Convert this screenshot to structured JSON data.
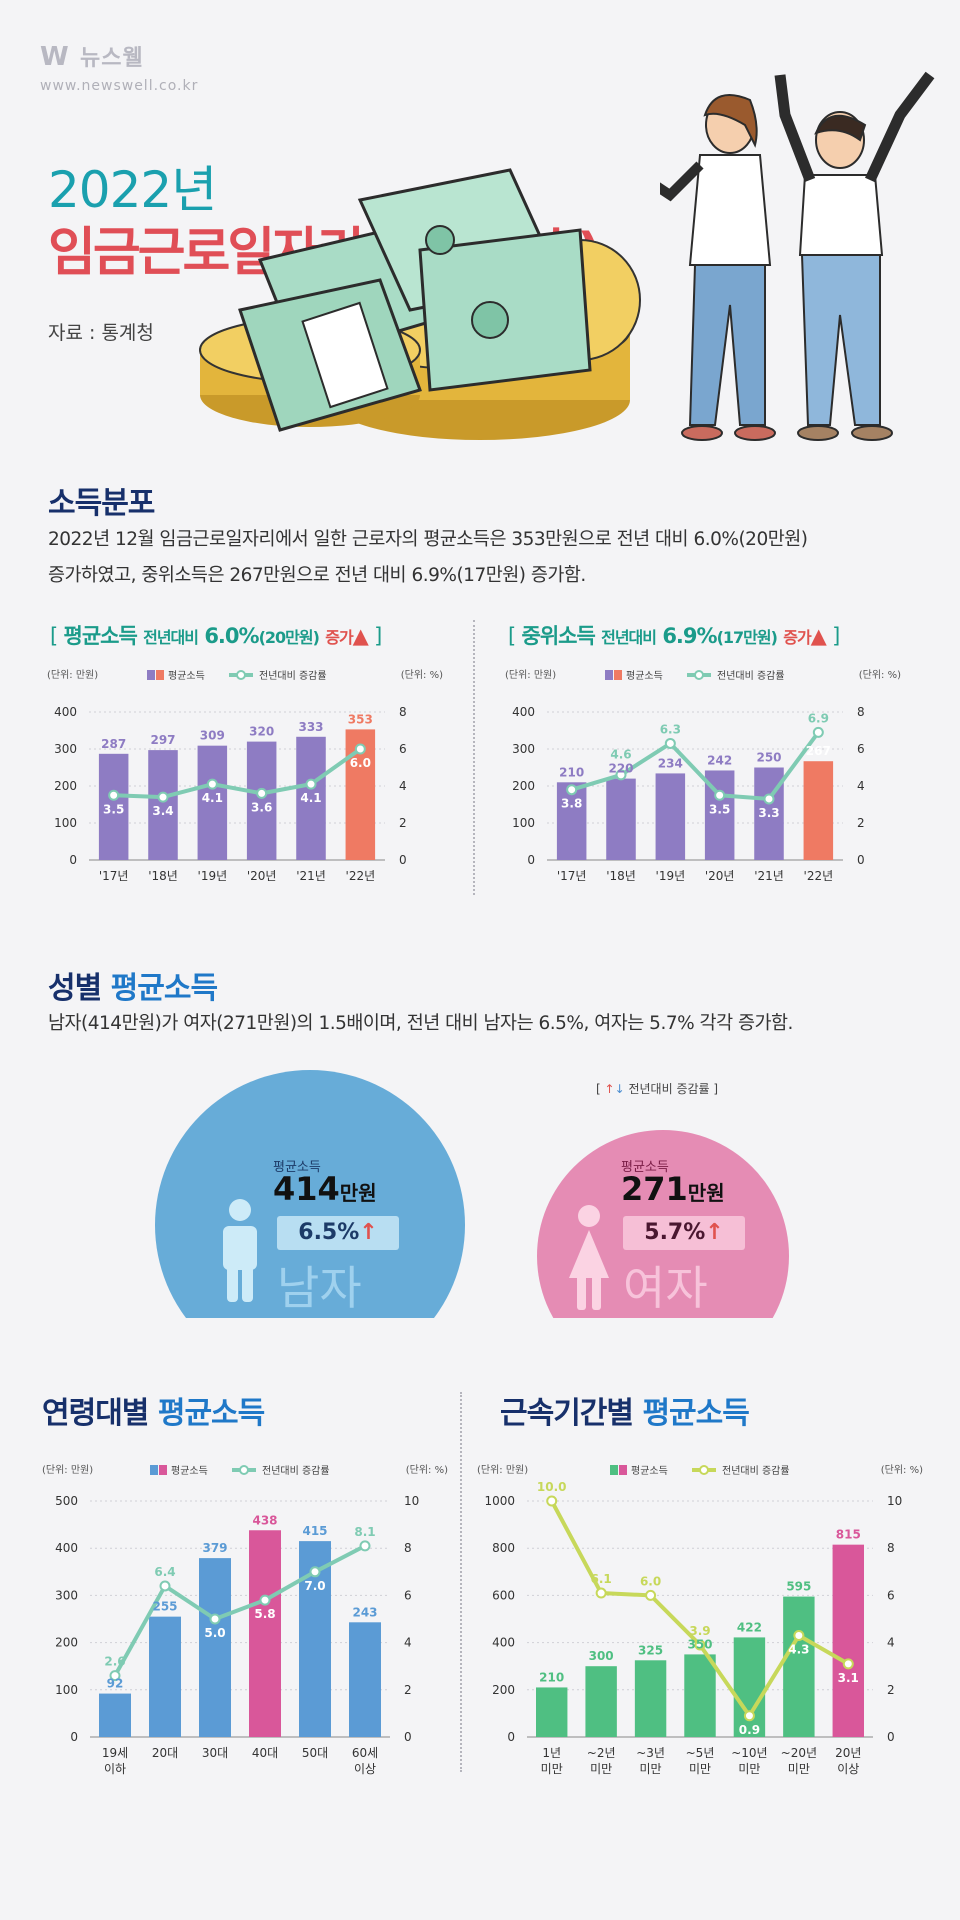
{
  "brand": {
    "name": "뉴스웰",
    "url": "www.newswell.co.kr"
  },
  "title": {
    "year": "2022년",
    "main": "임금근로일자리 소득(보수)",
    "source": "자료 : 통계청"
  },
  "colors": {
    "teal": "#1aa0ae",
    "red": "#e04e56",
    "navy": "#17306b",
    "purple": "#8e7cc3",
    "orange": "#ef7a63",
    "mint": "#7fcbb3",
    "blue": "#5b9bd5",
    "pink": "#d9579a",
    "green": "#4fbf82",
    "lime": "#c7d85a",
    "male_bg": "#67acd8",
    "female_bg": "#e58cb4"
  },
  "section1": {
    "title": "소득분포",
    "desc_line1": "2022년 12월 임금근로일자리에서 일한 근로자의 평균소득은 353만원으로 전년 대비 6.0%(20만원)",
    "desc_line2": "증가하였고, 중위소득은 267만원으로 전년 대비 6.9%(17만원) 증가함."
  },
  "chart_avg": {
    "head_open": "[",
    "head_title": "평균소득",
    "head_sub": "전년대비",
    "head_pct": "6.0%",
    "head_amt": "(20만원)",
    "head_inc": "증가",
    "head_close": "]"
  },
  "chart_med": {
    "head_open": "[",
    "head_title": "중위소득",
    "head_sub": "전년대비",
    "head_pct": "6.9%",
    "head_amt": "(17만원)",
    "head_inc": "증가",
    "head_close": "]"
  },
  "section2": {
    "title_a": "성별",
    "title_b": "평균소득",
    "desc": "남자(414만원)가 여자(271만원)의 1.5배이며, 전년 대비 남자는 6.5%, 여자는 5.7% 각각 증가함.",
    "legend": "전년대비 증감률",
    "legend_open": "[",
    "legend_close": "]",
    "male": {
      "label": "평균소득",
      "value": "414",
      "unit": "만원",
      "rate": "6.5%",
      "name": "남자"
    },
    "female": {
      "label": "평균소득",
      "value": "271",
      "unit": "만원",
      "rate": "5.7%",
      "name": "여자"
    }
  },
  "section3": {
    "title_a": "연령대별",
    "title_b": "평균소득"
  },
  "section4": {
    "title_a": "근속기간별",
    "title_b": "평균소득"
  },
  "chart_data": [
    {
      "type": "bar",
      "title": "평균소득",
      "categories": [
        "'17년",
        "'18년",
        "'19년",
        "'20년",
        "'21년",
        "'22년"
      ],
      "series": [
        {
          "name": "평균소득",
          "type": "bar",
          "axis": "left",
          "values": [
            287,
            297,
            309,
            320,
            333,
            353
          ]
        },
        {
          "name": "전년대비 증감률",
          "type": "line",
          "axis": "right",
          "values": [
            3.5,
            3.4,
            4.1,
            3.6,
            4.1,
            6.0
          ]
        }
      ],
      "ylabel_left": "(단위: 만원)",
      "ylabel_right": "(단위: %)",
      "ylim_left": [
        0,
        400
      ],
      "ylim_right": [
        0,
        8
      ],
      "yticks_left": [
        "0",
        "100",
        "200",
        "300",
        "400"
      ],
      "yticks_right": [
        "0",
        "2",
        "4",
        "6",
        "8"
      ],
      "grid": true,
      "legend": "top"
    },
    {
      "type": "bar",
      "title": "중위소득",
      "categories": [
        "'17년",
        "'18년",
        "'19년",
        "'20년",
        "'21년",
        "'22년"
      ],
      "series": [
        {
          "name": "평균소득",
          "type": "bar",
          "axis": "left",
          "values": [
            210,
            220,
            234,
            242,
            250,
            267
          ]
        },
        {
          "name": "전년대비 증감률",
          "type": "line",
          "axis": "right",
          "values": [
            3.8,
            4.6,
            6.3,
            3.5,
            3.3,
            6.9
          ]
        }
      ],
      "ylabel_left": "(단위: 만원)",
      "ylabel_right": "(단위: %)",
      "ylim_left": [
        0,
        400
      ],
      "ylim_right": [
        0,
        8
      ],
      "yticks_left": [
        "0",
        "100",
        "200",
        "300",
        "400"
      ],
      "yticks_right": [
        "0",
        "2",
        "4",
        "6",
        "8"
      ],
      "grid": true,
      "legend": "top"
    },
    {
      "type": "bar",
      "title": "연령대별 평균소득",
      "categories": [
        [
          "19세",
          "이하"
        ],
        [
          "20대"
        ],
        [
          "30대"
        ],
        [
          "40대"
        ],
        [
          "50대"
        ],
        [
          "60세",
          "이상"
        ]
      ],
      "series": [
        {
          "name": "평균소득",
          "type": "bar",
          "axis": "left",
          "values": [
            92,
            255,
            379,
            438,
            415,
            243
          ]
        },
        {
          "name": "전년대비 증감률",
          "type": "line",
          "axis": "right",
          "values": [
            2.6,
            6.4,
            5.0,
            5.8,
            7.0,
            8.1
          ]
        }
      ],
      "ylabel_left": "(단위: 만원)",
      "ylabel_right": "(단위: %)",
      "ylim_left": [
        0,
        500
      ],
      "ylim_right": [
        0,
        10
      ],
      "yticks_left": [
        "0",
        "100",
        "200",
        "300",
        "400",
        "500"
      ],
      "yticks_right": [
        "0",
        "2",
        "4",
        "6",
        "8",
        "10"
      ],
      "grid": true,
      "legend": "top"
    },
    {
      "type": "bar",
      "title": "근속기간별 평균소득",
      "categories": [
        [
          "1년",
          "미만"
        ],
        [
          "~2년",
          "미만"
        ],
        [
          "~3년",
          "미만"
        ],
        [
          "~5년",
          "미만"
        ],
        [
          "~10년",
          "미만"
        ],
        [
          "~20년",
          "미만"
        ],
        [
          "20년",
          "이상"
        ]
      ],
      "series": [
        {
          "name": "평균소득",
          "type": "bar",
          "axis": "left",
          "values": [
            210,
            300,
            325,
            350,
            422,
            595,
            815
          ]
        },
        {
          "name": "전년대비 증감률",
          "type": "line",
          "axis": "right",
          "values": [
            10.0,
            6.1,
            6.0,
            3.9,
            0.9,
            4.3,
            3.1
          ]
        }
      ],
      "ylabel_left": "(단위: 만원)",
      "ylabel_right": "(단위: %)",
      "ylim_left": [
        0,
        1000
      ],
      "ylim_right": [
        0,
        10
      ],
      "yticks_left": [
        "0",
        "200",
        "400",
        "600",
        "800",
        "1000"
      ],
      "yticks_right": [
        "0",
        "2",
        "4",
        "6",
        "8",
        "10"
      ],
      "grid": true,
      "legend": "top"
    }
  ]
}
